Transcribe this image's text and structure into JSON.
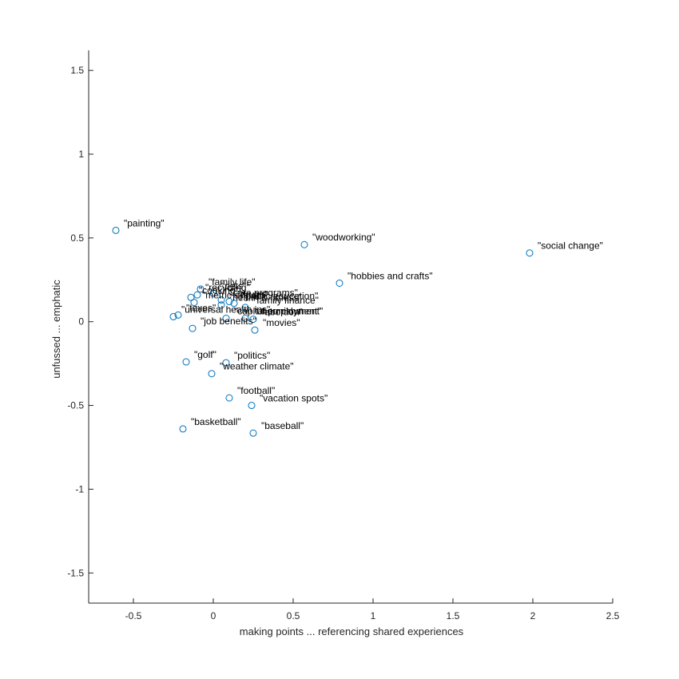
{
  "chart_data": {
    "type": "scatter",
    "title": "",
    "xlabel": "making points ... referencing shared experiences",
    "ylabel": "unfussed ... emphatic",
    "xlim": [
      -0.78,
      2.5
    ],
    "ylim": [
      -1.68,
      1.62
    ],
    "x_ticks": [
      -0.5,
      0,
      0.5,
      1,
      1.5,
      2,
      2.5
    ],
    "x_tick_labels": [
      "-0.5",
      "0",
      "0.5",
      "1",
      "1.5",
      "2",
      "2.5"
    ],
    "y_ticks": [
      -1.5,
      -1,
      -0.5,
      0,
      0.5,
      1,
      1.5
    ],
    "y_tick_labels": [
      "-1.5",
      "-1",
      "-0.5",
      "0",
      "0.5",
      "1",
      "1.5"
    ],
    "grid": false,
    "legend": "none",
    "marker_color": "#0072BD",
    "points": [
      {
        "label": "\"painting\"",
        "x": -0.61,
        "y": 0.545
      },
      {
        "label": "\"woodworking\"",
        "x": 0.57,
        "y": 0.46
      },
      {
        "label": "\"social change\"",
        "x": 1.98,
        "y": 0.41
      },
      {
        "label": "\"hobbies and crafts\"",
        "x": 0.79,
        "y": 0.23
      },
      {
        "label": "\"family life\"",
        "x": -0.08,
        "y": 0.195
      },
      {
        "label": "\"recycling\"",
        "x": -0.1,
        "y": 0.16
      },
      {
        "label": "\"pets\"",
        "x": 0.0,
        "y": 0.17
      },
      {
        "label": "\"cooking\"",
        "x": -0.14,
        "y": 0.145
      },
      {
        "label": "\"drugs\"",
        "x": 0.1,
        "y": 0.12
      },
      {
        "label": "\"care programs\"",
        "x": 0.05,
        "y": 0.13
      },
      {
        "label": "\"metric system\"",
        "x": -0.12,
        "y": 0.115
      },
      {
        "label": "\"public education\"",
        "x": 0.13,
        "y": 0.11
      },
      {
        "label": "\"health & fitness\"",
        "x": 0.05,
        "y": 0.1
      },
      {
        "label": "\"family finance\"",
        "x": 0.2,
        "y": 0.085
      },
      {
        "label": "\"taxes\"",
        "x": -0.22,
        "y": 0.04
      },
      {
        "label": "\"universal health ins\"",
        "x": -0.25,
        "y": 0.03
      },
      {
        "label": "\"capital punishment\"",
        "x": 0.08,
        "y": 0.02
      },
      {
        "label": "\"unemployment\"",
        "x": 0.2,
        "y": 0.02
      },
      {
        "label": "\"abortion\"",
        "x": 0.25,
        "y": 0.015
      },
      {
        "label": "\"job benefits\"",
        "x": -0.13,
        "y": -0.04
      },
      {
        "label": "\"movies\"",
        "x": 0.26,
        "y": -0.05
      },
      {
        "label": "\"golf\"",
        "x": -0.17,
        "y": -0.24
      },
      {
        "label": "\"politics\"",
        "x": 0.08,
        "y": -0.245
      },
      {
        "label": "\"weather climate\"",
        "x": -0.01,
        "y": -0.31
      },
      {
        "label": "\"football\"",
        "x": 0.1,
        "y": -0.455
      },
      {
        "label": "\"vacation spots\"",
        "x": 0.24,
        "y": -0.5
      },
      {
        "label": "\"basketball\"",
        "x": -0.19,
        "y": -0.64
      },
      {
        "label": "\"baseball\"",
        "x": 0.25,
        "y": -0.665
      }
    ]
  }
}
